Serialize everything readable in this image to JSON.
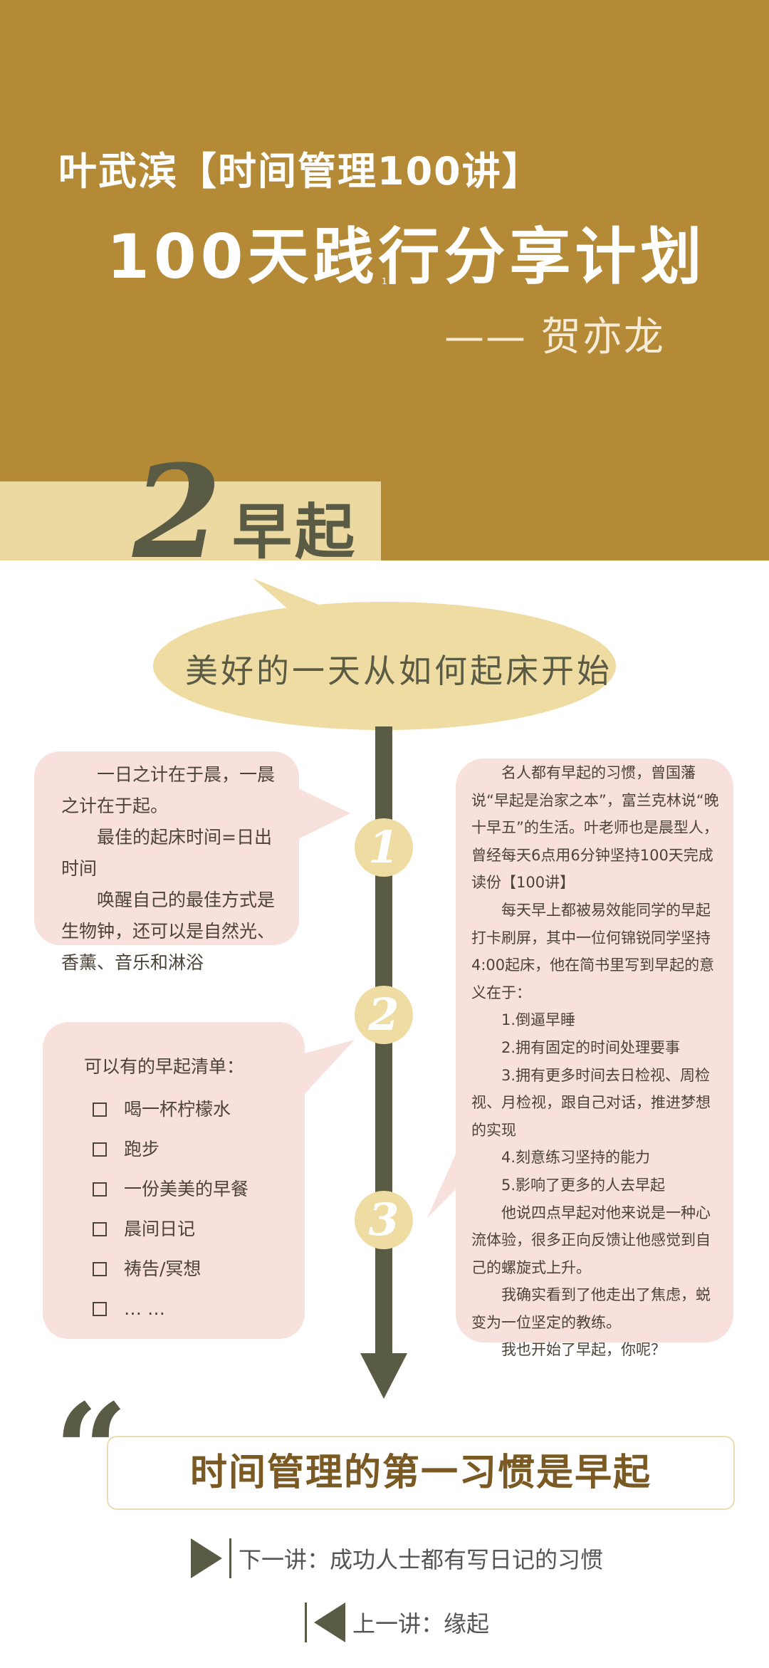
{
  "header": {
    "series": "叶武滨【时间管理100讲】",
    "title": "100天践行分享计划",
    "page_mark": "1",
    "author": "—— 贺亦龙",
    "bg_color": "#b58a36"
  },
  "chapter": {
    "number": "2",
    "title": "早起",
    "accent_color": "#5a5b45"
  },
  "slogan": "美好的一天从如何起床开始",
  "nodes": [
    "1",
    "2",
    "3"
  ],
  "left_card_top": {
    "p1": "一日之计在于晨，一晨之计在于起。",
    "p2": "最佳的起床时间=日出时间",
    "p3": "唤醒自己的最佳方式是生物钟，还可以是自然光、香薰、音乐和淋浴"
  },
  "left_card_bottom": {
    "title": "可以有的早起清单：",
    "items": [
      "喝一杯柠檬水",
      "跑步",
      "一份美美的早餐",
      "晨间日记",
      "祷告/冥想",
      "… …"
    ]
  },
  "right_card": {
    "p1": "名人都有早起的习惯，曾国藩说“早起是治家之本”，富兰克林说“晚十早五”的生活。叶老师也是晨型人，曾经每天6点用6分钟坚持100天完成读份【100讲】",
    "p2": "每天早上都被易效能同学的早起打卡刷屏，其中一位何锦锐同学坚持4:00起床，他在简书里写到早起的意义在于：",
    "items": [
      "1.倒逼早睡",
      "2.拥有固定的时间处理要事",
      "3.拥有更多时间去日检视、周检视、月检视，跟自己对话，推进梦想的实现",
      "4.刻意练习坚持的能力",
      "5.影响了更多的人去早起"
    ],
    "p3": "他说四点早起对他来说是一种心流体验，很多正向反馈让他感觉到自己的螺旋式上升。",
    "p4": "我确实看到了他走出了焦虑，蜕变为一位坚定的教练。",
    "p5": "我也开始了早起，你呢？"
  },
  "summary": "时间管理的第一习惯是早起",
  "quote_mark": "“",
  "nav": {
    "next": "下一讲：成功人士都有写日记的习惯",
    "prev": "上一讲：缘起"
  }
}
